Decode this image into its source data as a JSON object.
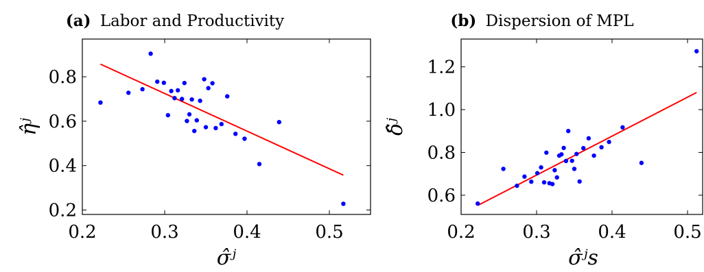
{
  "chart_data": [
    {
      "type": "scatter",
      "panel": "(a)",
      "title": "Labor and Productivity",
      "xlabel": "σ̂ʲ",
      "ylabel": "η̂ʲ",
      "xlim": [
        0.2,
        0.55
      ],
      "ylim": [
        0.18,
        0.97
      ],
      "xticks": [
        "0.2",
        "0.3",
        "0.4",
        "0.5"
      ],
      "yticks": [
        "0.2",
        "0.4",
        "0.6",
        "0.8"
      ],
      "grid": false,
      "point_color": "#0000ff",
      "line_color": "#ff0000",
      "points": [
        {
          "x": 0.222,
          "y": 0.684
        },
        {
          "x": 0.256,
          "y": 0.728
        },
        {
          "x": 0.273,
          "y": 0.744
        },
        {
          "x": 0.283,
          "y": 0.904
        },
        {
          "x": 0.291,
          "y": 0.778
        },
        {
          "x": 0.299,
          "y": 0.773
        },
        {
          "x": 0.304,
          "y": 0.627
        },
        {
          "x": 0.308,
          "y": 0.736
        },
        {
          "x": 0.312,
          "y": 0.704
        },
        {
          "x": 0.316,
          "y": 0.739
        },
        {
          "x": 0.321,
          "y": 0.7
        },
        {
          "x": 0.324,
          "y": 0.772
        },
        {
          "x": 0.327,
          "y": 0.601
        },
        {
          "x": 0.33,
          "y": 0.631
        },
        {
          "x": 0.333,
          "y": 0.698
        },
        {
          "x": 0.336,
          "y": 0.556
        },
        {
          "x": 0.339,
          "y": 0.604
        },
        {
          "x": 0.343,
          "y": 0.692
        },
        {
          "x": 0.348,
          "y": 0.789
        },
        {
          "x": 0.35,
          "y": 0.573
        },
        {
          "x": 0.353,
          "y": 0.749
        },
        {
          "x": 0.358,
          "y": 0.771
        },
        {
          "x": 0.362,
          "y": 0.569
        },
        {
          "x": 0.369,
          "y": 0.587
        },
        {
          "x": 0.376,
          "y": 0.712
        },
        {
          "x": 0.386,
          "y": 0.543
        },
        {
          "x": 0.397,
          "y": 0.521
        },
        {
          "x": 0.415,
          "y": 0.407
        },
        {
          "x": 0.439,
          "y": 0.596
        },
        {
          "x": 0.517,
          "y": 0.228
        }
      ],
      "fit_line": [
        {
          "x": 0.222,
          "y": 0.857
        },
        {
          "x": 0.517,
          "y": 0.357
        }
      ]
    },
    {
      "type": "scatter",
      "panel": "(b)",
      "title": "Dispersion of MPL",
      "xlabel": "σ̂ʲs",
      "ylabel": "δ̂ʲ",
      "xlim": [
        0.2,
        0.52
      ],
      "ylim": [
        0.51,
        1.33
      ],
      "xticks": [
        "0.2",
        "0.3",
        "0.4",
        "0.5"
      ],
      "yticks": [
        "0.6",
        "0.8",
        "1.0",
        "1.2"
      ],
      "grid": false,
      "point_color": "#0000ff",
      "line_color": "#ff0000",
      "points": [
        {
          "x": 0.222,
          "y": 0.561
        },
        {
          "x": 0.256,
          "y": 0.723
        },
        {
          "x": 0.274,
          "y": 0.644
        },
        {
          "x": 0.284,
          "y": 0.687
        },
        {
          "x": 0.293,
          "y": 0.663
        },
        {
          "x": 0.301,
          "y": 0.703
        },
        {
          "x": 0.306,
          "y": 0.73
        },
        {
          "x": 0.31,
          "y": 0.66
        },
        {
          "x": 0.313,
          "y": 0.799
        },
        {
          "x": 0.317,
          "y": 0.656
        },
        {
          "x": 0.321,
          "y": 0.652
        },
        {
          "x": 0.324,
          "y": 0.717
        },
        {
          "x": 0.327,
          "y": 0.683
        },
        {
          "x": 0.33,
          "y": 0.785
        },
        {
          "x": 0.333,
          "y": 0.791
        },
        {
          "x": 0.336,
          "y": 0.821
        },
        {
          "x": 0.339,
          "y": 0.76
        },
        {
          "x": 0.342,
          "y": 0.9
        },
        {
          "x": 0.347,
          "y": 0.761
        },
        {
          "x": 0.35,
          "y": 0.723
        },
        {
          "x": 0.353,
          "y": 0.793
        },
        {
          "x": 0.357,
          "y": 0.664
        },
        {
          "x": 0.362,
          "y": 0.82
        },
        {
          "x": 0.369,
          "y": 0.866
        },
        {
          "x": 0.376,
          "y": 0.785
        },
        {
          "x": 0.386,
          "y": 0.824
        },
        {
          "x": 0.396,
          "y": 0.849
        },
        {
          "x": 0.414,
          "y": 0.917
        },
        {
          "x": 0.439,
          "y": 0.751
        },
        {
          "x": 0.512,
          "y": 1.273
        }
      ],
      "fit_line": [
        {
          "x": 0.222,
          "y": 0.552
        },
        {
          "x": 0.512,
          "y": 1.08
        }
      ]
    }
  ]
}
